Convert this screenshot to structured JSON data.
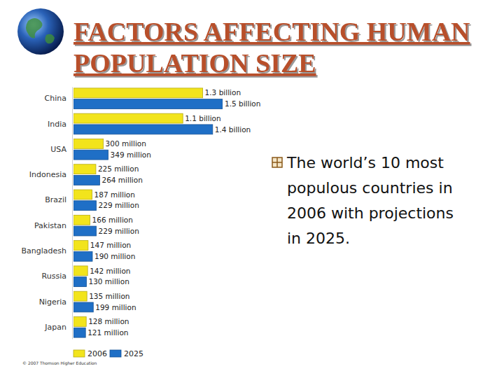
{
  "chart_data": {
    "type": "bar",
    "orientation": "horizontal",
    "title": "FACTORS AFFECTING HUMAN POPULATION SIZE",
    "subtitle": "The world’s 10 most populous countries in 2006 with projections in 2025.",
    "source": "© 2007 Thomson Higher Education",
    "categories": [
      "China",
      "India",
      "USA",
      "Indonesia",
      "Brazil",
      "Pakistan",
      "Bangladesh",
      "Russia",
      "Nigeria",
      "Japan"
    ],
    "series": [
      {
        "name": "2006",
        "color": "#f2e41c",
        "values": [
          1300,
          1100,
          300,
          225,
          187,
          166,
          147,
          142,
          135,
          128
        ],
        "value_labels": [
          "1.3 billion",
          "1.1 billion",
          "300 million",
          "225 million",
          "187 million",
          "166 million",
          "147 million",
          "142 million",
          "135 million",
          "128 million"
        ]
      },
      {
        "name": "2025",
        "color": "#1f6fc6",
        "values": [
          1500,
          1400,
          349,
          264,
          229,
          229,
          190,
          130,
          199,
          121
        ],
        "value_labels": [
          "1.5 billion",
          "1.4 billion",
          "349 million",
          "264 million",
          "229 million",
          "229 million",
          "190 million",
          "130 million",
          "199 million",
          "121 million"
        ]
      }
    ],
    "xlim": [
      0,
      1500
    ],
    "data_labels": true,
    "tick_labels": "y",
    "legend": "bottom left"
  }
}
